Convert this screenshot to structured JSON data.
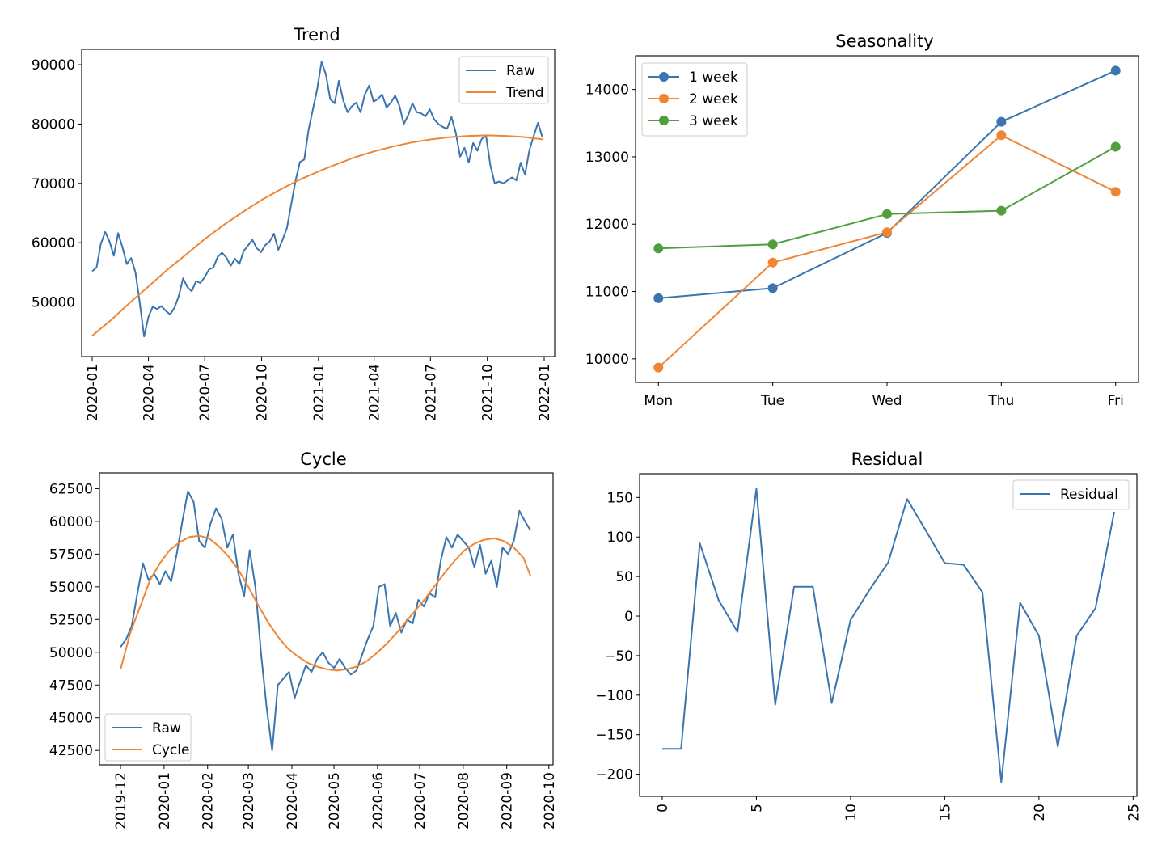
{
  "colors": {
    "blue": "#3b75af",
    "orange": "#ef8636",
    "green": "#519e3e"
  },
  "chart_data": [
    {
      "id": "trend",
      "type": "line",
      "title": "Trend",
      "x_kind": "date",
      "xlim": [
        "2019-12-15",
        "2022-01-18"
      ],
      "ylim": [
        40800,
        92600
      ],
      "x_ticks": [
        "2020-01",
        "2020-04",
        "2020-07",
        "2020-10",
        "2021-01",
        "2021-04",
        "2021-07",
        "2021-10",
        "2022-01"
      ],
      "x_tick_rotation": -90,
      "y_ticks": [
        50000,
        60000,
        70000,
        80000,
        90000
      ],
      "legend": {
        "loc": "upper right",
        "entries": [
          "Raw",
          "Trend"
        ]
      },
      "series": [
        {
          "name": "Raw",
          "color": "blue",
          "x": [
            "2020-01-01",
            "2020-01-08",
            "2020-01-15",
            "2020-01-22",
            "2020-01-29",
            "2020-02-05",
            "2020-02-12",
            "2020-02-19",
            "2020-02-26",
            "2020-03-04",
            "2020-03-11",
            "2020-03-18",
            "2020-03-25",
            "2020-04-01",
            "2020-04-08",
            "2020-04-15",
            "2020-04-22",
            "2020-04-29",
            "2020-05-06",
            "2020-05-13",
            "2020-05-20",
            "2020-05-27",
            "2020-06-03",
            "2020-06-10",
            "2020-06-17",
            "2020-06-24",
            "2020-07-01",
            "2020-07-08",
            "2020-07-15",
            "2020-07-22",
            "2020-07-29",
            "2020-08-05",
            "2020-08-12",
            "2020-08-19",
            "2020-08-26",
            "2020-09-02",
            "2020-09-09",
            "2020-09-16",
            "2020-09-23",
            "2020-09-30",
            "2020-10-07",
            "2020-10-14",
            "2020-10-21",
            "2020-10-28",
            "2020-11-04",
            "2020-11-11",
            "2020-11-18",
            "2020-11-25",
            "2020-12-02",
            "2020-12-09",
            "2020-12-16",
            "2020-12-23",
            "2020-12-30",
            "2021-01-06",
            "2021-01-13",
            "2021-01-20",
            "2021-01-27",
            "2021-02-03",
            "2021-02-10",
            "2021-02-17",
            "2021-02-24",
            "2021-03-03",
            "2021-03-10",
            "2021-03-17",
            "2021-03-24",
            "2021-03-31",
            "2021-04-07",
            "2021-04-14",
            "2021-04-21",
            "2021-04-28",
            "2021-05-05",
            "2021-05-12",
            "2021-05-19",
            "2021-05-26",
            "2021-06-02",
            "2021-06-09",
            "2021-06-16",
            "2021-06-23",
            "2021-06-30",
            "2021-07-07",
            "2021-07-14",
            "2021-07-21",
            "2021-07-28",
            "2021-08-04",
            "2021-08-11",
            "2021-08-18",
            "2021-08-25",
            "2021-09-01",
            "2021-09-08",
            "2021-09-15",
            "2021-09-22",
            "2021-09-29",
            "2021-10-06",
            "2021-10-13",
            "2021-10-20",
            "2021-10-27",
            "2021-11-03",
            "2021-11-10",
            "2021-11-17",
            "2021-11-24",
            "2021-12-01",
            "2021-12-08",
            "2021-12-15",
            "2021-12-22",
            "2021-12-29"
          ],
          "y": [
            55200,
            55800,
            59800,
            61800,
            60200,
            57800,
            61600,
            59200,
            56400,
            57400,
            55000,
            49800,
            44200,
            47500,
            49200,
            48800,
            49300,
            48500,
            47900,
            49000,
            51000,
            54000,
            52500,
            51800,
            53500,
            53200,
            54200,
            55500,
            55800,
            57600,
            58300,
            57500,
            56100,
            57300,
            56400,
            58600,
            59500,
            60500,
            59100,
            58400,
            59600,
            60200,
            61500,
            58800,
            60500,
            62500,
            66500,
            70500,
            73600,
            74000,
            79000,
            82500,
            86000,
            90500,
            88300,
            84200,
            83500,
            87300,
            84000,
            82000,
            83000,
            83600,
            82000,
            85000,
            86500,
            83800,
            84200,
            85000,
            82800,
            83600,
            84800,
            83000,
            80000,
            81500,
            83500,
            82000,
            81800,
            81300,
            82500,
            80800,
            80000,
            79500,
            79200,
            81200,
            78600,
            74500,
            76000,
            73500,
            76800,
            75500,
            77500,
            78000,
            73000,
            70000,
            70300,
            70000,
            70500,
            71000,
            70500,
            73500,
            71500,
            75500,
            78000,
            80200,
            77800
          ]
        },
        {
          "name": "Trend",
          "color": "orange",
          "x": [
            "2020-01-01",
            "2020-02-01",
            "2020-03-01",
            "2020-04-01",
            "2020-05-01",
            "2020-06-01",
            "2020-07-01",
            "2020-08-01",
            "2020-09-01",
            "2020-10-01",
            "2020-11-01",
            "2020-12-01",
            "2021-01-01",
            "2021-02-01",
            "2021-03-01",
            "2021-04-01",
            "2021-05-01",
            "2021-06-01",
            "2021-07-01",
            "2021-08-01",
            "2021-09-01",
            "2021-10-01",
            "2021-11-01",
            "2021-12-01",
            "2021-12-31"
          ],
          "y": [
            44300,
            47000,
            49800,
            52600,
            55400,
            58000,
            60600,
            63000,
            65200,
            67200,
            69000,
            70600,
            72000,
            73300,
            74400,
            75400,
            76200,
            76900,
            77400,
            77800,
            78000,
            78100,
            78000,
            77800,
            77400
          ]
        }
      ]
    },
    {
      "id": "seasonality",
      "type": "line",
      "title": "Seasonality",
      "x_kind": "category",
      "categories": [
        "Mon",
        "Tue",
        "Wed",
        "Thu",
        "Fri"
      ],
      "xlim": [
        -0.2,
        4.2
      ],
      "ylim": [
        9650,
        14500
      ],
      "y_ticks": [
        10000,
        11000,
        12000,
        13000,
        14000
      ],
      "markers": true,
      "legend": {
        "loc": "upper left",
        "entries": [
          "1 week",
          "2 week",
          "3 week"
        ]
      },
      "series": [
        {
          "name": "1 week",
          "color": "blue",
          "values": [
            10900,
            11050,
            11870,
            13520,
            14280
          ]
        },
        {
          "name": "2 week",
          "color": "orange",
          "values": [
            9870,
            11430,
            11880,
            13320,
            12480
          ]
        },
        {
          "name": "3 week",
          "color": "green",
          "values": [
            11640,
            11700,
            12150,
            12200,
            13150
          ]
        }
      ]
    },
    {
      "id": "cycle",
      "type": "line",
      "title": "Cycle",
      "x_kind": "date",
      "xlim": [
        "2019-11-16",
        "2020-10-04"
      ],
      "ylim": [
        41400,
        63700
      ],
      "x_ticks": [
        "2019-12",
        "2020-01",
        "2020-02",
        "2020-03",
        "2020-04",
        "2020-05",
        "2020-06",
        "2020-07",
        "2020-08",
        "2020-09",
        "2020-10"
      ],
      "x_tick_rotation": -90,
      "y_ticks": [
        42500,
        45000,
        47500,
        50000,
        52500,
        55000,
        57500,
        60000,
        62500
      ],
      "legend": {
        "loc": "lower left",
        "entries": [
          "Raw",
          "Cycle"
        ]
      },
      "series": [
        {
          "name": "Raw",
          "color": "blue",
          "x": [
            "2019-12-01",
            "2019-12-05",
            "2019-12-09",
            "2019-12-13",
            "2019-12-17",
            "2019-12-21",
            "2019-12-25",
            "2019-12-29",
            "2020-01-02",
            "2020-01-06",
            "2020-01-10",
            "2020-01-14",
            "2020-01-18",
            "2020-01-22",
            "2020-01-26",
            "2020-01-30",
            "2020-02-03",
            "2020-02-07",
            "2020-02-11",
            "2020-02-15",
            "2020-02-19",
            "2020-02-23",
            "2020-02-27",
            "2020-03-02",
            "2020-03-06",
            "2020-03-10",
            "2020-03-14",
            "2020-03-18",
            "2020-03-22",
            "2020-03-26",
            "2020-03-30",
            "2020-04-03",
            "2020-04-07",
            "2020-04-11",
            "2020-04-15",
            "2020-04-19",
            "2020-04-23",
            "2020-04-27",
            "2020-05-01",
            "2020-05-05",
            "2020-05-09",
            "2020-05-13",
            "2020-05-17",
            "2020-05-21",
            "2020-05-25",
            "2020-05-29",
            "2020-06-02",
            "2020-06-06",
            "2020-06-10",
            "2020-06-14",
            "2020-06-18",
            "2020-06-22",
            "2020-06-26",
            "2020-06-30",
            "2020-07-04",
            "2020-07-08",
            "2020-07-12",
            "2020-07-16",
            "2020-07-20",
            "2020-07-24",
            "2020-07-28",
            "2020-08-01",
            "2020-08-05",
            "2020-08-09",
            "2020-08-13",
            "2020-08-17",
            "2020-08-21",
            "2020-08-25",
            "2020-08-29",
            "2020-09-02",
            "2020-09-06",
            "2020-09-10",
            "2020-09-14",
            "2020-09-18"
          ],
          "y": [
            50400,
            51000,
            52000,
            54500,
            56800,
            55500,
            56000,
            55200,
            56200,
            55400,
            57500,
            60000,
            62300,
            61500,
            58500,
            58000,
            59800,
            61000,
            60200,
            58000,
            59000,
            56000,
            54300,
            57800,
            55000,
            50000,
            45800,
            42500,
            47500,
            48000,
            48500,
            46500,
            47800,
            49000,
            48500,
            49500,
            50000,
            49200,
            48800,
            49500,
            48800,
            48300,
            48600,
            49800,
            51000,
            52000,
            55000,
            55200,
            52000,
            53000,
            51500,
            52500,
            52200,
            54000,
            53500,
            54500,
            54200,
            57000,
            58800,
            58000,
            59000,
            58500,
            58000,
            56500,
            58200,
            56000,
            57000,
            55000,
            58000,
            57500,
            58500,
            60800,
            60000,
            59300
          ]
        },
        {
          "name": "Cycle",
          "color": "orange",
          "x": [
            "2019-12-01",
            "2019-12-08",
            "2019-12-15",
            "2019-12-22",
            "2019-12-29",
            "2020-01-05",
            "2020-01-12",
            "2020-01-19",
            "2020-01-26",
            "2020-02-02",
            "2020-02-09",
            "2020-02-16",
            "2020-02-23",
            "2020-03-01",
            "2020-03-08",
            "2020-03-15",
            "2020-03-22",
            "2020-03-29",
            "2020-04-05",
            "2020-04-12",
            "2020-04-19",
            "2020-04-26",
            "2020-05-03",
            "2020-05-10",
            "2020-05-17",
            "2020-05-24",
            "2020-05-31",
            "2020-06-07",
            "2020-06-14",
            "2020-06-21",
            "2020-06-28",
            "2020-07-05",
            "2020-07-12",
            "2020-07-19",
            "2020-07-26",
            "2020-08-02",
            "2020-08-09",
            "2020-08-16",
            "2020-08-23",
            "2020-08-30",
            "2020-09-06",
            "2020-09-13",
            "2020-09-18"
          ],
          "y": [
            48700,
            51500,
            53500,
            55500,
            56800,
            57800,
            58400,
            58800,
            58900,
            58700,
            58100,
            57300,
            56300,
            55000,
            53600,
            52300,
            51200,
            50300,
            49700,
            49200,
            48900,
            48700,
            48600,
            48700,
            48900,
            49300,
            49900,
            50600,
            51400,
            52300,
            53200,
            54100,
            55100,
            56100,
            57000,
            57800,
            58300,
            58600,
            58700,
            58500,
            58000,
            57200,
            55800
          ]
        }
      ]
    },
    {
      "id": "residual",
      "type": "line",
      "title": "Residual",
      "x_kind": "number",
      "xlim": [
        -1.2,
        25.2
      ],
      "ylim": [
        -228,
        180
      ],
      "x_ticks": [
        0,
        5,
        10,
        15,
        20,
        25
      ],
      "x_tick_rotation": -90,
      "y_ticks": [
        -200,
        -150,
        -100,
        -50,
        0,
        50,
        100,
        150
      ],
      "legend": {
        "loc": "upper right",
        "entries": [
          "Residual"
        ]
      },
      "series": [
        {
          "name": "Residual",
          "color": "blue",
          "x": [
            0,
            1,
            2,
            3,
            4,
            5,
            6,
            7,
            8,
            9,
            10,
            11,
            12,
            13,
            14,
            15,
            16,
            17,
            18,
            19,
            20,
            21,
            22,
            23,
            24
          ],
          "y": [
            -168,
            -168,
            92,
            20,
            -20,
            161,
            -112,
            37,
            37,
            -110,
            -5,
            33,
            68,
            148,
            108,
            67,
            65,
            30,
            -210,
            17,
            -25,
            -165,
            -25,
            10,
            132
          ]
        }
      ]
    }
  ]
}
